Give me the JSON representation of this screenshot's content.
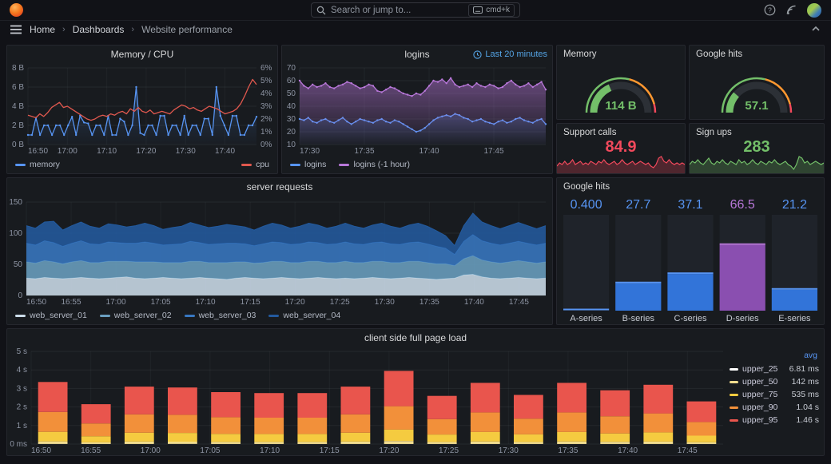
{
  "topbar": {
    "search_placeholder": "Search or jump to...",
    "shortcut": "cmd+k"
  },
  "breadcrumb": {
    "items": [
      "Home",
      "Dashboards",
      "Website performance"
    ],
    "separator": "›"
  },
  "chart_data": {
    "memory_cpu": {
      "type": "timeseries",
      "title": "Memory / CPU",
      "padL": 26,
      "padR": 26,
      "yl": {
        "min": 0,
        "max": 8,
        "ticks": [
          {
            "v": 0,
            "l": "0 B"
          },
          {
            "v": 2,
            "l": "2 B"
          },
          {
            "v": 4,
            "l": "4 B"
          },
          {
            "v": 6,
            "l": "6 B"
          },
          {
            "v": 8,
            "l": "8 B"
          }
        ]
      },
      "yr": {
        "min": 0,
        "max": 6,
        "ticks": [
          {
            "v": 0,
            "l": "0%"
          },
          {
            "v": 1,
            "l": "1%"
          },
          {
            "v": 2,
            "l": "2%"
          },
          {
            "v": 3,
            "l": "3%"
          },
          {
            "v": 4,
            "l": "4%"
          },
          {
            "v": 5,
            "l": "5%"
          },
          {
            "v": 6,
            "l": "6%"
          }
        ]
      },
      "x_ticks": [
        {
          "f": 0,
          "l": "16:50"
        },
        {
          "f": 0.1724,
          "l": "17:00"
        },
        {
          "f": 0.3448,
          "l": "17:10"
        },
        {
          "f": 0.5172,
          "l": "17:20"
        },
        {
          "f": 0.6897,
          "l": "17:30"
        },
        {
          "f": 0.8621,
          "l": "17:40"
        }
      ],
      "series": [
        {
          "name": "memory",
          "color": "#5794F2",
          "axis": "l",
          "fill": 0.25,
          "dots": true,
          "values": [
            1,
            1,
            2.8,
            1,
            2,
            2,
            1,
            2,
            2,
            1,
            2,
            2.9,
            1,
            3,
            2.3,
            2.2,
            1,
            2,
            2,
            1,
            3,
            1,
            1,
            2.7,
            2.4,
            1,
            2,
            6,
            1.2,
            1,
            2,
            2,
            1,
            3,
            3,
            1,
            2,
            2,
            1,
            3,
            1,
            2,
            2,
            1,
            2.7,
            2.7,
            1,
            6,
            3,
            2,
            1,
            3,
            3,
            1,
            1,
            2,
            2,
            2.9
          ]
        },
        {
          "name": "cpu",
          "color": "#E0584E",
          "axis": "r",
          "fill": 0,
          "dots": false,
          "values": [
            2.3,
            2.2,
            2.1,
            2.4,
            2.2,
            2.5,
            2.9,
            3.1,
            3.3,
            2.9,
            3.0,
            2.8,
            2.6,
            2.4,
            2.2,
            2.0,
            1.9,
            2.0,
            2.2,
            2.3,
            2.2,
            2.4,
            2.3,
            2.5,
            2.6,
            2.4,
            2.8,
            2.6,
            2.9,
            2.6,
            2.5,
            2.7,
            2.4,
            2.5,
            2.6,
            2.5,
            2.4,
            2.7,
            2.9,
            3.1,
            3.0,
            2.8,
            2.9,
            2.7,
            2.6,
            2.8,
            3.0,
            2.9,
            2.8,
            2.6,
            2.4,
            2.5,
            2.6,
            2.8,
            3.2,
            3.8,
            4.5,
            5.1,
            4.7
          ]
        }
      ]
    },
    "logins": {
      "type": "timeseries",
      "title": "logins",
      "timerange": "Last 20 minutes",
      "padL": 22,
      "padR": 8,
      "yl": {
        "min": 10,
        "max": 70,
        "ticks": [
          {
            "v": 10,
            "l": "10"
          },
          {
            "v": 20,
            "l": "20"
          },
          {
            "v": 30,
            "l": "30"
          },
          {
            "v": 40,
            "l": "40"
          },
          {
            "v": 50,
            "l": "50"
          },
          {
            "v": 60,
            "l": "60"
          },
          {
            "v": 70,
            "l": "70"
          }
        ]
      },
      "x_ticks": [
        {
          "f": 0,
          "l": "17:30"
        },
        {
          "f": 0.263,
          "l": "17:35"
        },
        {
          "f": 0.526,
          "l": "17:40"
        },
        {
          "f": 0.789,
          "l": "17:45"
        }
      ],
      "series": [
        {
          "name": "logins",
          "color": "#5794F2",
          "axis": "l",
          "fill": 0.22,
          "dots": true,
          "values": [
            30,
            29,
            31,
            28,
            27,
            29,
            30,
            28,
            27,
            29,
            31,
            28,
            26,
            28,
            30,
            29,
            28,
            27,
            29,
            30,
            28,
            27,
            29,
            28,
            26,
            24,
            22,
            20,
            21,
            23,
            26,
            29,
            31,
            32,
            33,
            32,
            34,
            33,
            31,
            30,
            28,
            29,
            30,
            28,
            27,
            26,
            28,
            29,
            27,
            28,
            30,
            31,
            29,
            28,
            27,
            29,
            30,
            26
          ]
        },
        {
          "name": "logins (-1 hour)",
          "color": "#B877D9",
          "axis": "l",
          "fill": 0.5,
          "dots": true,
          "values": [
            60,
            56,
            54,
            57,
            55,
            56,
            58,
            55,
            54,
            56,
            57,
            59,
            58,
            56,
            54,
            55,
            57,
            56,
            52,
            51,
            53,
            55,
            54,
            52,
            50,
            49,
            48,
            50,
            49,
            52,
            56,
            60,
            59,
            61,
            58,
            62,
            57,
            55,
            56,
            57,
            55,
            58,
            56,
            55,
            57,
            56,
            54,
            55,
            58,
            60,
            57,
            55,
            56,
            58,
            55,
            57,
            59,
            53
          ]
        }
      ]
    },
    "server_requests": {
      "type": "stackedarea",
      "title": "server requests",
      "padL": 24,
      "padR": 8,
      "yl": {
        "min": 0,
        "max": 150,
        "ticks": [
          {
            "v": 0,
            "l": "0"
          },
          {
            "v": 50,
            "l": "50"
          },
          {
            "v": 100,
            "l": "100"
          },
          {
            "v": 150,
            "l": "150"
          }
        ]
      },
      "x_ticks": [
        {
          "f": 0,
          "l": "16:50"
        },
        {
          "f": 0.0862,
          "l": "16:55"
        },
        {
          "f": 0.1724,
          "l": "17:00"
        },
        {
          "f": 0.2586,
          "l": "17:05"
        },
        {
          "f": 0.3448,
          "l": "17:10"
        },
        {
          "f": 0.431,
          "l": "17:15"
        },
        {
          "f": 0.5172,
          "l": "17:20"
        },
        {
          "f": 0.6034,
          "l": "17:25"
        },
        {
          "f": 0.6897,
          "l": "17:30"
        },
        {
          "f": 0.7759,
          "l": "17:35"
        },
        {
          "f": 0.8621,
          "l": "17:40"
        },
        {
          "f": 0.9483,
          "l": "17:45"
        }
      ],
      "series": [
        {
          "name": "web_server_01",
          "color": "#CBDCE9",
          "values": [
            28,
            27,
            29,
            28,
            27,
            28,
            29,
            28,
            27,
            28,
            29,
            30,
            28,
            27,
            28,
            29,
            28,
            27,
            28,
            29,
            28,
            27,
            26,
            28,
            29,
            28,
            27,
            28,
            29,
            28,
            27,
            28,
            29,
            28,
            27,
            28,
            27,
            28,
            29,
            28,
            27,
            28,
            29,
            28,
            27,
            26,
            27,
            28,
            33,
            34,
            30,
            28,
            27,
            28,
            29,
            28,
            27,
            28
          ]
        },
        {
          "name": "web_server_02",
          "color": "#6A9FC0",
          "values": [
            26,
            25,
            27,
            26,
            24,
            26,
            27,
            25,
            26,
            27,
            26,
            25,
            26,
            27,
            26,
            24,
            25,
            26,
            27,
            26,
            25,
            26,
            27,
            26,
            25,
            24,
            26,
            27,
            26,
            25,
            26,
            27,
            26,
            25,
            26,
            27,
            26,
            25,
            26,
            27,
            26,
            25,
            26,
            27,
            26,
            25,
            24,
            20,
            26,
            30,
            27,
            26,
            25,
            26,
            27,
            26,
            25,
            26
          ]
        },
        {
          "name": "web_server_03",
          "color": "#3878C2",
          "values": [
            30,
            29,
            32,
            31,
            28,
            30,
            32,
            30,
            29,
            31,
            30,
            29,
            30,
            32,
            30,
            28,
            29,
            30,
            32,
            30,
            29,
            30,
            31,
            30,
            29,
            28,
            30,
            31,
            30,
            29,
            30,
            31,
            30,
            29,
            30,
            31,
            30,
            29,
            30,
            31,
            30,
            29,
            30,
            31,
            30,
            28,
            25,
            18,
            28,
            34,
            31,
            30,
            29,
            30,
            31,
            30,
            29,
            30
          ]
        },
        {
          "name": "web_server_04",
          "color": "#235A9E",
          "values": [
            28,
            27,
            30,
            34,
            26,
            28,
            30,
            28,
            26,
            29,
            28,
            26,
            28,
            30,
            28,
            25,
            27,
            28,
            30,
            28,
            27,
            28,
            30,
            28,
            27,
            25,
            28,
            30,
            28,
            26,
            28,
            30,
            28,
            26,
            28,
            30,
            28,
            26,
            28,
            30,
            28,
            26,
            28,
            30,
            28,
            25,
            20,
            14,
            25,
            34,
            30,
            28,
            26,
            28,
            30,
            28,
            26,
            28
          ]
        }
      ]
    },
    "google_hits_bars": {
      "type": "bargauge",
      "title": "Google hits",
      "max": 97,
      "items": [
        {
          "label": "A-series",
          "display": "0.400",
          "v": 0.4,
          "color": "#5794F2",
          "bar": "#3274D9",
          "cap": "#5794F2"
        },
        {
          "label": "B-series",
          "display": "27.7",
          "v": 27.7,
          "color": "#5794F2",
          "bar": "#3274D9",
          "cap": "#5794F2"
        },
        {
          "label": "C-series",
          "display": "37.1",
          "v": 37.1,
          "color": "#5794F2",
          "bar": "#3274D9",
          "cap": "#5794F2"
        },
        {
          "label": "D-series",
          "display": "66.5",
          "v": 66.5,
          "color": "#B877D9",
          "bar": "#8A4FB0",
          "cap": "#B877D9"
        },
        {
          "label": "E-series",
          "display": "21.2",
          "v": 21.2,
          "color": "#5794F2",
          "bar": "#3274D9",
          "cap": "#5794F2"
        }
      ]
    },
    "client_side": {
      "type": "stackedbars",
      "title": "client side full page load",
      "padL": 30,
      "padR": 8,
      "legend_header": "avg",
      "yl": {
        "min": 0,
        "max": 5,
        "ticks": [
          {
            "v": 0,
            "l": "0 ms"
          },
          {
            "v": 1,
            "l": "1 s"
          },
          {
            "v": 2,
            "l": "2 s"
          },
          {
            "v": 3,
            "l": "3 s"
          },
          {
            "v": 4,
            "l": "4 s"
          },
          {
            "v": 5,
            "l": "5 s"
          }
        ]
      },
      "x_ticks": [
        {
          "f": 0,
          "l": "16:50"
        },
        {
          "f": 0.0862,
          "l": "16:55"
        },
        {
          "f": 0.1724,
          "l": "17:00"
        },
        {
          "f": 0.2586,
          "l": "17:05"
        },
        {
          "f": 0.3448,
          "l": "17:10"
        },
        {
          "f": 0.431,
          "l": "17:15"
        },
        {
          "f": 0.5172,
          "l": "17:20"
        },
        {
          "f": 0.6034,
          "l": "17:25"
        },
        {
          "f": 0.6897,
          "l": "17:30"
        },
        {
          "f": 0.7759,
          "l": "17:35"
        },
        {
          "f": 0.8621,
          "l": "17:40"
        },
        {
          "f": 0.9483,
          "l": "17:45"
        }
      ],
      "totals": [
        3.35,
        2.15,
        3.1,
        3.05,
        2.8,
        2.75,
        2.75,
        3.1,
        3.95,
        2.6,
        3.3,
        2.65,
        3.3,
        2.9,
        3.2,
        2.3
      ],
      "series": [
        {
          "name": "upper_25",
          "color": "#FFFFFF",
          "frac": 0.002,
          "avg": "6.81 ms"
        },
        {
          "name": "upper_50",
          "color": "#F2DD8F",
          "frac": 0.04,
          "avg": "142 ms"
        },
        {
          "name": "upper_75",
          "color": "#F5CB40",
          "frac": 0.155,
          "avg": "535 ms"
        },
        {
          "name": "upper_90",
          "color": "#F2903A",
          "frac": 0.32,
          "avg": "1.04 s"
        },
        {
          "name": "upper_95",
          "color": "#E9554D",
          "frac": 0.483,
          "avg": "1.46 s"
        }
      ]
    },
    "memory_gauge": {
      "type": "gauge",
      "title": "Memory",
      "value": "114 B",
      "pct": 0.37,
      "color": "#73BF69",
      "thresholds": [
        {
          "to": 0.58,
          "color": "#73BF69"
        },
        {
          "to": 0.92,
          "color": "#FF9830"
        },
        {
          "to": 1,
          "color": "#F2495C"
        }
      ]
    },
    "google_gauge": {
      "type": "gauge",
      "title": "Google hits",
      "value": "57.1",
      "pct": 0.23,
      "color": "#73BF69",
      "thresholds": [
        {
          "to": 0.58,
          "color": "#73BF69"
        },
        {
          "to": 0.92,
          "color": "#FF9830"
        },
        {
          "to": 1,
          "color": "#F2495C"
        }
      ]
    },
    "support_calls": {
      "type": "sparkline",
      "title": "Support calls",
      "value": "84.9",
      "color": "#F2495C",
      "values": [
        4,
        6,
        5,
        7,
        5,
        6,
        8,
        5,
        6,
        7,
        5,
        6,
        5,
        7,
        6,
        5,
        7,
        6,
        8,
        6,
        5,
        6,
        7,
        5,
        6,
        8,
        6,
        5,
        6,
        7,
        5,
        6,
        7,
        6,
        5,
        6,
        4,
        3,
        5,
        9,
        10,
        7,
        6,
        8,
        6,
        5,
        6,
        5,
        6,
        5
      ]
    },
    "sign_ups": {
      "type": "sparkline",
      "title": "Sign ups",
      "value": "283",
      "color": "#73BF69",
      "values": [
        5,
        7,
        6,
        8,
        6,
        5,
        7,
        9,
        6,
        5,
        7,
        6,
        8,
        6,
        5,
        7,
        6,
        5,
        8,
        6,
        7,
        5,
        6,
        8,
        6,
        5,
        7,
        6,
        5,
        7,
        6,
        8,
        6,
        5,
        6,
        7,
        5,
        4,
        2,
        5,
        10,
        9,
        6,
        7,
        5,
        6,
        7,
        6,
        5,
        6
      ]
    }
  }
}
